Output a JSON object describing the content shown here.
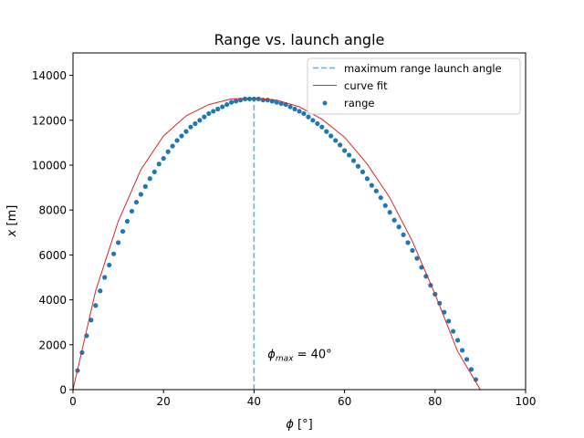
{
  "chart_data": {
    "type": "scatter",
    "title": "Range vs. launch angle",
    "xlabel_symbol": "ϕ",
    "xlabel_unit": " [°]",
    "ylabel_symbol": "x",
    "ylabel_unit": " [m]",
    "xlim": [
      0,
      100
    ],
    "ylim": [
      0,
      15000
    ],
    "xticks": [
      0,
      20,
      40,
      60,
      80,
      100
    ],
    "yticks": [
      0,
      2000,
      4000,
      6000,
      8000,
      10000,
      12000,
      14000
    ],
    "grid": false,
    "legend_position": "top-right",
    "legend": [
      {
        "label": "maximum range launch angle",
        "style": "dashed-line",
        "color": "#1f77b4"
      },
      {
        "label": "curve fit",
        "style": "line",
        "color": "#d62728"
      },
      {
        "label": "range",
        "style": "marker",
        "color": "#1f77b4"
      }
    ],
    "annotation": {
      "symbol": "ϕ",
      "subscript": "max",
      "text": " = 40°",
      "x": 43,
      "y": 1400
    },
    "max_range_angle": 40,
    "curve_fit": {
      "color": "#d62728",
      "x": [
        0,
        5,
        10,
        15,
        20,
        25,
        30,
        35,
        40,
        45,
        50,
        55,
        60,
        65,
        70,
        75,
        80,
        85,
        90
      ],
      "y": [
        0,
        4400,
        7500,
        9800,
        11300,
        12200,
        12700,
        12950,
        12990,
        12900,
        12600,
        12050,
        11250,
        10050,
        8550,
        6600,
        4250,
        1700,
        0
      ]
    },
    "series": [
      {
        "name": "range",
        "color": "#1f77b4",
        "x": [
          1,
          2,
          3,
          4,
          5,
          6,
          7,
          8,
          9,
          10,
          11,
          12,
          13,
          14,
          15,
          16,
          17,
          18,
          19,
          20,
          21,
          22,
          23,
          24,
          25,
          26,
          27,
          28,
          29,
          30,
          31,
          32,
          33,
          34,
          35,
          36,
          37,
          38,
          39,
          40,
          41,
          42,
          43,
          44,
          45,
          46,
          47,
          48,
          49,
          50,
          51,
          52,
          53,
          54,
          55,
          56,
          57,
          58,
          59,
          60,
          61,
          62,
          63,
          64,
          65,
          66,
          67,
          68,
          69,
          70,
          71,
          72,
          73,
          74,
          75,
          76,
          77,
          78,
          79,
          80,
          81,
          82,
          83,
          84,
          85,
          86,
          87,
          88,
          89
        ],
        "y": [
          850,
          1650,
          2400,
          3100,
          3750,
          4400,
          5000,
          5550,
          6050,
          6550,
          7050,
          7500,
          7950,
          8350,
          8700,
          9050,
          9400,
          9700,
          10050,
          10300,
          10600,
          10850,
          11100,
          11300,
          11500,
          11700,
          11850,
          12000,
          12150,
          12300,
          12400,
          12500,
          12600,
          12700,
          12800,
          12850,
          12900,
          12950,
          12950,
          12950,
          12950,
          12900,
          12900,
          12850,
          12800,
          12750,
          12700,
          12600,
          12500,
          12400,
          12300,
          12150,
          12000,
          11850,
          11700,
          11500,
          11300,
          11100,
          10900,
          10650,
          10450,
          10200,
          9950,
          9700,
          9400,
          9100,
          8850,
          8550,
          8200,
          7900,
          7550,
          7250,
          6900,
          6550,
          6200,
          5850,
          5450,
          5050,
          4650,
          4250,
          3850,
          3450,
          3050,
          2600,
          2200,
          1750,
          1350,
          900,
          450
        ]
      }
    ]
  }
}
